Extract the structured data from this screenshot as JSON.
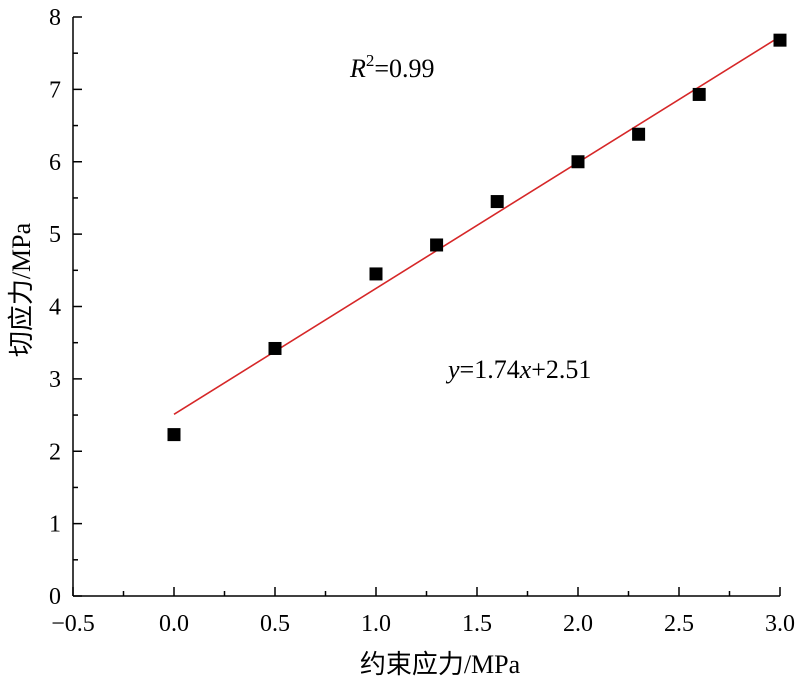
{
  "chart_data": {
    "type": "scatter",
    "xlabel": "约束应力/MPa",
    "ylabel": "切应力/MPa",
    "xlim": [
      -0.5,
      3.0
    ],
    "ylim": [
      0,
      8
    ],
    "xticks": [
      "−0.5",
      "0.0",
      "0.5",
      "1.0",
      "1.5",
      "2.0",
      "2.5",
      "3.0"
    ],
    "yticks": [
      "0",
      "1",
      "2",
      "3",
      "4",
      "5",
      "6",
      "7",
      "8"
    ],
    "series": [
      {
        "marker": "square",
        "color": "#000000",
        "points": [
          {
            "x": 0.0,
            "y": 2.23
          },
          {
            "x": 0.5,
            "y": 3.42
          },
          {
            "x": 1.0,
            "y": 4.45
          },
          {
            "x": 1.3,
            "y": 4.85
          },
          {
            "x": 1.6,
            "y": 5.45
          },
          {
            "x": 2.0,
            "y": 6.0
          },
          {
            "x": 2.3,
            "y": 6.38
          },
          {
            "x": 2.6,
            "y": 6.93
          },
          {
            "x": 3.0,
            "y": 7.68
          }
        ]
      }
    ],
    "fit": {
      "slope": 1.74,
      "intercept": 2.51,
      "x_range": [
        0.0,
        3.0
      ],
      "color": "#d62728"
    },
    "annotations": {
      "r2": {
        "var": "R",
        "sup": "2",
        "rest": "=0.99"
      },
      "equation": {
        "y": "y",
        "eq1": "=1.74",
        "x": "x",
        "eq2": "+2.51"
      }
    }
  }
}
